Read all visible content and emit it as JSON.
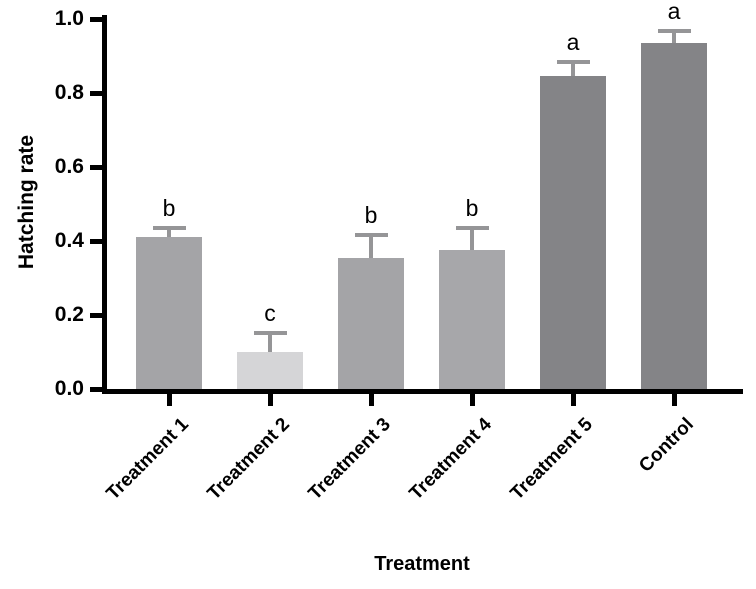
{
  "figure": {
    "background": "#ffffff",
    "axis_color": "#000000"
  },
  "chart_data": {
    "type": "bar",
    "title": "",
    "xlabel": "Treatment",
    "ylabel": "Hatching rate",
    "ylim": [
      0.0,
      1.0
    ],
    "ytick_labels": [
      "0.0",
      "0.2",
      "0.4",
      "0.6",
      "0.8",
      "1.0"
    ],
    "categories": [
      "Treatment 1",
      "Treatment 2",
      "Treatment 3",
      "Treatment 4",
      "Treatment 5",
      "Control"
    ],
    "values": [
      0.41,
      0.1,
      0.355,
      0.375,
      0.845,
      0.935
    ],
    "error_bar_upper": [
      0.435,
      0.152,
      0.415,
      0.435,
      0.885,
      0.968
    ],
    "significance_letters": [
      "b",
      "c",
      "b",
      "b",
      "a",
      "a"
    ],
    "bar_colors": [
      "#a4a4a7",
      "#d5d5d7",
      "#a4a4a7",
      "#a7a7aa",
      "#848487",
      "#848487"
    ],
    "error_bar_color": "#959597",
    "grid": false,
    "legend": "none",
    "bar_orientation": "vertical",
    "x_tick_label_rotation_deg": 45
  }
}
